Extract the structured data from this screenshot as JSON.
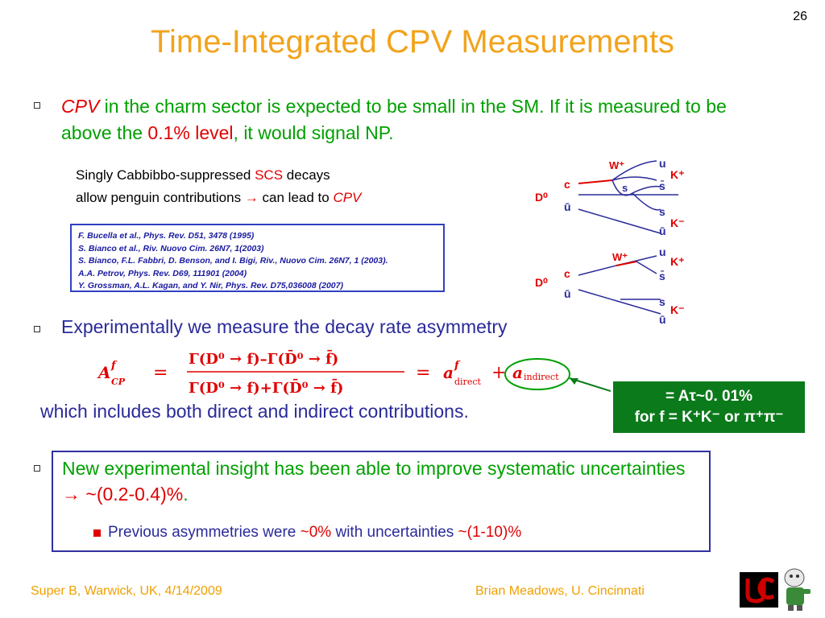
{
  "slide": {
    "page_number": "26",
    "title": "Time-Integrated CPV Measurements"
  },
  "bullet1": {
    "cpv": "CPV",
    "text_a": " in the charm sector is expected to be small in the SM.  If it is measured to be above the ",
    "level": "0.1% level",
    "text_b": ", it would signal NP."
  },
  "scs_note": {
    "line1_a": "Singly Cabbibbo-suppressed  ",
    "scs": "SCS",
    "line1_b": " decays",
    "line2_a": "allow penguin contributions ",
    "arrow": "→",
    "line2_b": " can lead to ",
    "cpv": "CPV"
  },
  "references": [
    "F. Bucella et al., Phys. Rev. D51, 3478 (1995)",
    "S. Bianco et al., Riv. Nuovo Cim. 26N7, 1(2003)",
    "S. Bianco, F.L. Fabbri, D. Benson, and I. Bigi, Riv., Nuovo Cim. 26N7, 1 (2003).",
    "A.A. Petrov, Phys. Rev. D69, 111901 (2004)",
    "Y. Grossman, A.L. Kagan, and Y. Nir, Phys. Rev. D75,036008 (2007)"
  ],
  "bullet2": {
    "text": "Experimentally we measure the decay rate asymmetry"
  },
  "formula": {
    "lhs": "A",
    "lhs_sup": "f",
    "lhs_sub": "CP",
    "eq": "=",
    "numerator": "Γ(D⁰ → f)–Γ(D̄⁰ → f̄)",
    "denominator": "Γ(D⁰ → f)+Γ(D̄⁰ → f̄)",
    "eq2": "=",
    "a": "a",
    "a_sup": "f",
    "a_direct_sub": "direct",
    "plus": "+",
    "a_indirect_sub": "indirect"
  },
  "contributions_text": "which includes both direct and indirect contributions.",
  "green_box": {
    "line1": "= Aτ~0. 01%",
    "line2": "for f = K⁺K⁻ or π⁺π⁻"
  },
  "bullet3": {
    "text_a": "New experimental insight has been able to improve  systematic uncertainties ",
    "arrow": "→",
    "range": " ~(0.2-0.4)%",
    "dot": "."
  },
  "sub_bullet": {
    "text_a": "Previous asymmetries were ",
    "val1": "~0%",
    "text_b": " with uncertainties ",
    "val2": "~(1-10)%"
  },
  "footer": {
    "left": "Super B, Warwick, UK, 4/14/2009",
    "right": "Brian Meadows, U. Cincinnati"
  },
  "feynman": {
    "w_label": "W⁺",
    "c": "c",
    "u_bar": "ū",
    "d0": "D⁰",
    "s": "s",
    "s_bar": "s̄",
    "u": "u",
    "k_plus": "K⁺",
    "k_minus": "K⁻"
  },
  "colors": {
    "title": "#f2a31c",
    "green_text": "#00a000",
    "red_text": "#e00000",
    "navy_text": "#2a2a9a",
    "box_green": "#0b7a1a"
  }
}
